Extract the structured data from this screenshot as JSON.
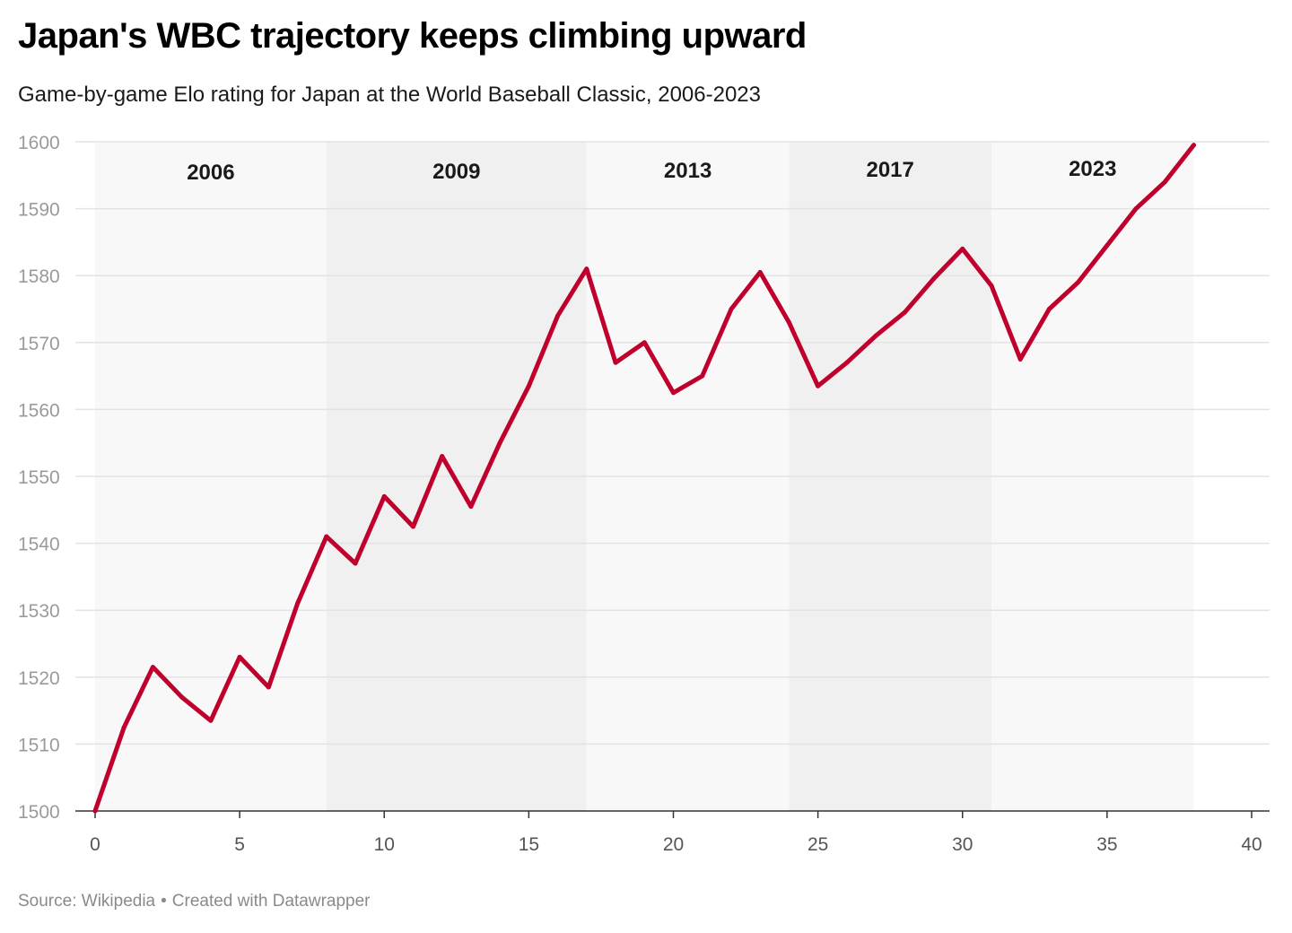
{
  "header": {
    "title": "Japan's WBC trajectory keeps climbing upward",
    "subtitle": "Game-by-game Elo rating for Japan at the World Baseball Classic, 2006-2023"
  },
  "footer": {
    "source": "Source: Wikipedia",
    "separator": "•",
    "credit": "Created with Datawrapper"
  },
  "colors": {
    "line": "#c0002c",
    "band_light": "#f8f8f8",
    "band_dark": "#f0f0f0",
    "grid": "#e3e3e3",
    "tick_text": "#9a9a9a",
    "x_tick_text": "#555555"
  },
  "chart_data": {
    "type": "line",
    "title": "Japan's WBC trajectory keeps climbing upward",
    "subtitle": "Game-by-game Elo rating for Japan at the World Baseball Classic, 2006-2023",
    "xlabel": "",
    "ylabel": "",
    "xlim": [
      0,
      40
    ],
    "ylim": [
      1500,
      1600
    ],
    "x_ticks": [
      0,
      5,
      10,
      15,
      20,
      25,
      30,
      35,
      40
    ],
    "y_ticks": [
      1500,
      1510,
      1520,
      1530,
      1540,
      1550,
      1560,
      1570,
      1580,
      1590,
      1600
    ],
    "grid": true,
    "legend": "none",
    "bands": [
      {
        "label": "2006",
        "x0": 0,
        "x1": 8,
        "shade": "light"
      },
      {
        "label": "2009",
        "x0": 8,
        "x1": 17,
        "shade": "dark"
      },
      {
        "label": "2013",
        "x0": 17,
        "x1": 24,
        "shade": "light"
      },
      {
        "label": "2017",
        "x0": 24,
        "x1": 31,
        "shade": "dark"
      },
      {
        "label": "2023",
        "x0": 31,
        "x1": 38,
        "shade": "light"
      }
    ],
    "series": [
      {
        "x": [
          0,
          1,
          2,
          3,
          4,
          5,
          6,
          7,
          8,
          9,
          10,
          11,
          12,
          13,
          14,
          15,
          16,
          17,
          18,
          19,
          20,
          21,
          22,
          23,
          24,
          25,
          26,
          27,
          28,
          29,
          30,
          31,
          32,
          33,
          34,
          35,
          36,
          37,
          38
        ],
        "values": [
          1500,
          1512.5,
          1521.5,
          1517,
          1513.5,
          1523,
          1518.5,
          1531,
          1541,
          1537,
          1547,
          1542.5,
          1553,
          1545.5,
          1555,
          1563.5,
          1574,
          1581,
          1567,
          1570,
          1562.5,
          1565,
          1575,
          1580.5,
          1573,
          1563.5,
          1567,
          1571,
          1574.5,
          1579.5,
          1584,
          1578.5,
          1567.5,
          1575,
          1579,
          1584.5,
          1590,
          1594,
          1599.5
        ]
      }
    ]
  }
}
